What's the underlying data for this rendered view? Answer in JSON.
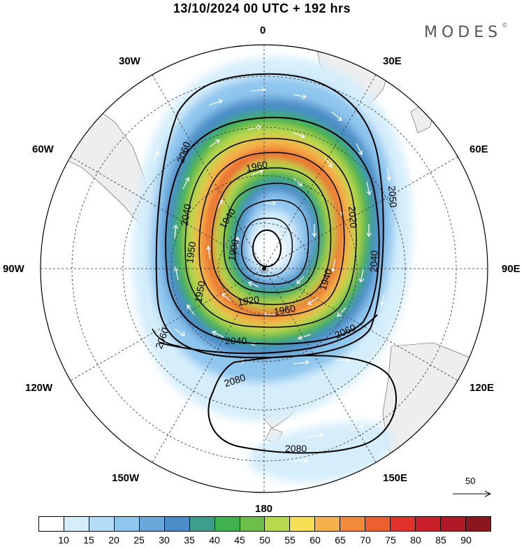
{
  "title": "13/10/2024  00 UTC  + 192 hrs",
  "logo": {
    "text": "MODES",
    "mark": "©"
  },
  "longitude_labels": {
    "top": "0",
    "top_right": "30E",
    "right_upper": "60E",
    "right": "90E",
    "right_lower": "120E",
    "bottom_right": "150E",
    "bottom": "180",
    "bottom_left": "150W",
    "left_lower": "120W",
    "left": "90W",
    "left_upper": "60W",
    "top_left": "30W"
  },
  "contour_labels": [
    "2060",
    "2040",
    "1960",
    "1940",
    "2020",
    "2050",
    "1950",
    "1900",
    "1950",
    "1920",
    "1960",
    "1940",
    "2040",
    "2040",
    "2060",
    "2080",
    "2080",
    "2060",
    "2060"
  ],
  "reference_vector": {
    "label": "50"
  },
  "colorbar": {
    "colors": [
      "#ffffff",
      "#d6eefb",
      "#b3dcf6",
      "#8ec6ee",
      "#6aa8dc",
      "#4a8cc7",
      "#3e9e8c",
      "#3fb14e",
      "#6cc04a",
      "#b7d94e",
      "#f6de55",
      "#f6b24a",
      "#f28a3c",
      "#ec5f2e",
      "#e0312b",
      "#c81f29",
      "#b01a27",
      "#8c1620"
    ],
    "ticks": [
      "10",
      "15",
      "20",
      "25",
      "30",
      "35",
      "40",
      "45",
      "50",
      "55",
      "60",
      "65",
      "70",
      "75",
      "80",
      "85",
      "90"
    ]
  }
}
